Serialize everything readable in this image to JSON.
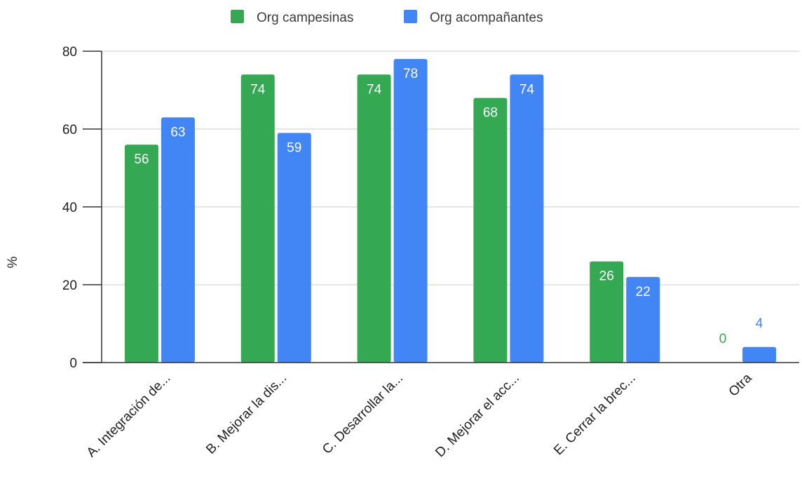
{
  "chart_data": {
    "type": "bar",
    "title": "",
    "xlabel": "",
    "ylabel": "%",
    "ylim": [
      0,
      80
    ],
    "yticks": [
      0,
      20,
      40,
      60,
      80
    ],
    "grid": true,
    "legend_position": "top",
    "categories": [
      "A. Integración de...",
      "B. Mejorar la dis...",
      "C. Desarrollar la...",
      "D. Mejorar el acc...",
      "E. Cerrar la brec...",
      "Otra"
    ],
    "series": [
      {
        "name": "Org campesinas",
        "color": "#34a853",
        "values": [
          56,
          74,
          74,
          68,
          26,
          0
        ]
      },
      {
        "name": "Org acompañantes",
        "color": "#4285f4",
        "values": [
          63,
          59,
          78,
          74,
          22,
          4
        ]
      }
    ]
  }
}
